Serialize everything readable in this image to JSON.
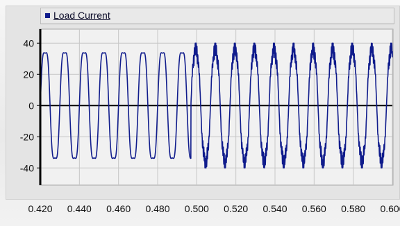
{
  "chart_data": {
    "type": "line",
    "legend_position": "top",
    "series": [
      {
        "name": "Load Current",
        "color": "#101c8c"
      }
    ],
    "x_ticks": [
      "0.420",
      "0.440",
      "0.460",
      "0.480",
      "0.500",
      "0.520",
      "0.540",
      "0.560",
      "0.580",
      "0.600"
    ],
    "y_ticks": [
      "40",
      "20",
      "0",
      "-20",
      "-40"
    ],
    "xlim": [
      0.42,
      0.6
    ],
    "ylim": [
      -51,
      49
    ],
    "grid": true,
    "signal": {
      "fundamental_hz": 100,
      "segment_1": {
        "t_start": 0.42,
        "t_end": 0.497,
        "amplitude": 40,
        "phase_deg": 0
      },
      "segment_2": {
        "t_start": 0.497,
        "t_end": 0.6,
        "amplitude": 40,
        "distortion": "high-frequency ripple near crests"
      }
    }
  }
}
